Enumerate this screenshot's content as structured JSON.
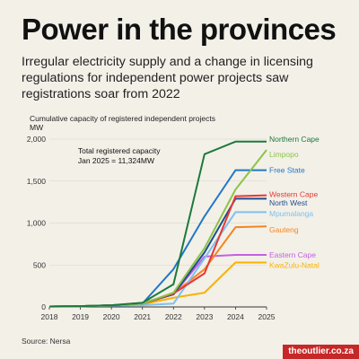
{
  "header": {
    "title": "Power in the provinces",
    "subtitle": "Irregular electricity supply and a change in licensing regulations for independent power projects saw registrations soar from 2022"
  },
  "chart_data": {
    "type": "line",
    "title": "Cumulative capacity of registered independent projects",
    "ylabel": "MW",
    "x": [
      2018,
      2019,
      2020,
      2021,
      2022,
      2023,
      2024,
      2025
    ],
    "xlim": [
      2018,
      2025
    ],
    "ylim": [
      0,
      2000
    ],
    "yticks": [
      0,
      500,
      1000,
      1500,
      2000
    ],
    "ytick_labels": [
      "0",
      "500",
      "1,000",
      "1,500",
      "2,000"
    ],
    "grid": true,
    "legend": "right, direct labels",
    "annotation": {
      "line1": "Total registered capacity",
      "line2": "Jan 2025 = 11,324MW",
      "x": 2019.5,
      "y": 1830
    },
    "series": [
      {
        "name": "KwaZulu-Natal",
        "color": "#f9b200",
        "values": [
          5,
          10,
          15,
          30,
          110,
          170,
          530,
          530
        ]
      },
      {
        "name": "Eastern Cape",
        "color": "#c560e0",
        "values": [
          5,
          10,
          20,
          50,
          150,
          600,
          620,
          620
        ]
      },
      {
        "name": "Gauteng",
        "color": "#f48520",
        "values": [
          5,
          10,
          20,
          35,
          160,
          450,
          950,
          960
        ]
      },
      {
        "name": "Mpumalanga",
        "color": "#7cc1f0",
        "values": [
          3,
          8,
          15,
          20,
          40,
          580,
          1130,
          1130
        ]
      },
      {
        "name": "North West",
        "color": "#1f4e8c",
        "values": [
          5,
          10,
          20,
          40,
          150,
          650,
          1290,
          1290
        ]
      },
      {
        "name": "Western Cape",
        "color": "#e53935",
        "values": [
          5,
          10,
          20,
          40,
          160,
          400,
          1320,
          1330
        ]
      },
      {
        "name": "Free State",
        "color": "#1f78c8",
        "values": [
          5,
          10,
          20,
          40,
          450,
          1080,
          1630,
          1630
        ]
      },
      {
        "name": "Limpopo",
        "color": "#8bc34a",
        "values": [
          5,
          10,
          20,
          40,
          170,
          700,
          1400,
          1870
        ]
      },
      {
        "name": "Northern Cape",
        "color": "#1a7a3a",
        "values": [
          5,
          10,
          20,
          50,
          270,
          1820,
          1970,
          1970
        ]
      }
    ],
    "labels": [
      {
        "series": "Northern Cape",
        "y": 2000
      },
      {
        "series": "Limpopo",
        "y": 1820
      },
      {
        "series": "Free State",
        "y": 1630
      },
      {
        "series": "Western Cape",
        "y": 1340
      },
      {
        "series": "North West",
        "y": 1240
      },
      {
        "series": "Mpumalanga",
        "y": 1110
      },
      {
        "series": "Gauteng",
        "y": 920
      },
      {
        "series": "Eastern Cape",
        "y": 620
      },
      {
        "series": "KwaZulu-Natal",
        "y": 500
      }
    ]
  },
  "footer": {
    "source": "Source: Nersa",
    "brand": "theoutlier.co.za"
  }
}
